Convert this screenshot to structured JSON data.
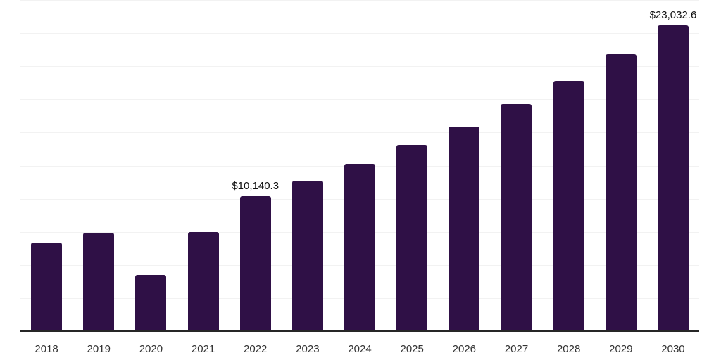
{
  "chart_data": {
    "type": "bar",
    "title": "",
    "xlabel": "",
    "ylabel": "",
    "categories": [
      "2018",
      "2019",
      "2020",
      "2021",
      "2022",
      "2023",
      "2024",
      "2025",
      "2026",
      "2027",
      "2028",
      "2029",
      "2030"
    ],
    "values": [
      6620,
      7360,
      4200,
      7410,
      10140.3,
      11310,
      12590,
      13980,
      15400,
      17070,
      18830,
      20840,
      23032.6
    ],
    "data_labels": [
      "",
      "",
      "",
      "",
      "$10,140.3",
      "",
      "",
      "",
      "",
      "",
      "",
      "",
      "$23,032.6"
    ],
    "ylim": [
      0,
      24880
    ],
    "gridline_intervals": 10,
    "grid": "horizontal-only",
    "legend_position": "none",
    "y_axis_tick_labels_visible": false,
    "colors": {
      "bar": "#2f1046",
      "axis_line": "#262626",
      "gridline": "#f2f2f2",
      "tick_label": "#333333",
      "data_label": "#111111",
      "background": "#ffffff"
    }
  }
}
